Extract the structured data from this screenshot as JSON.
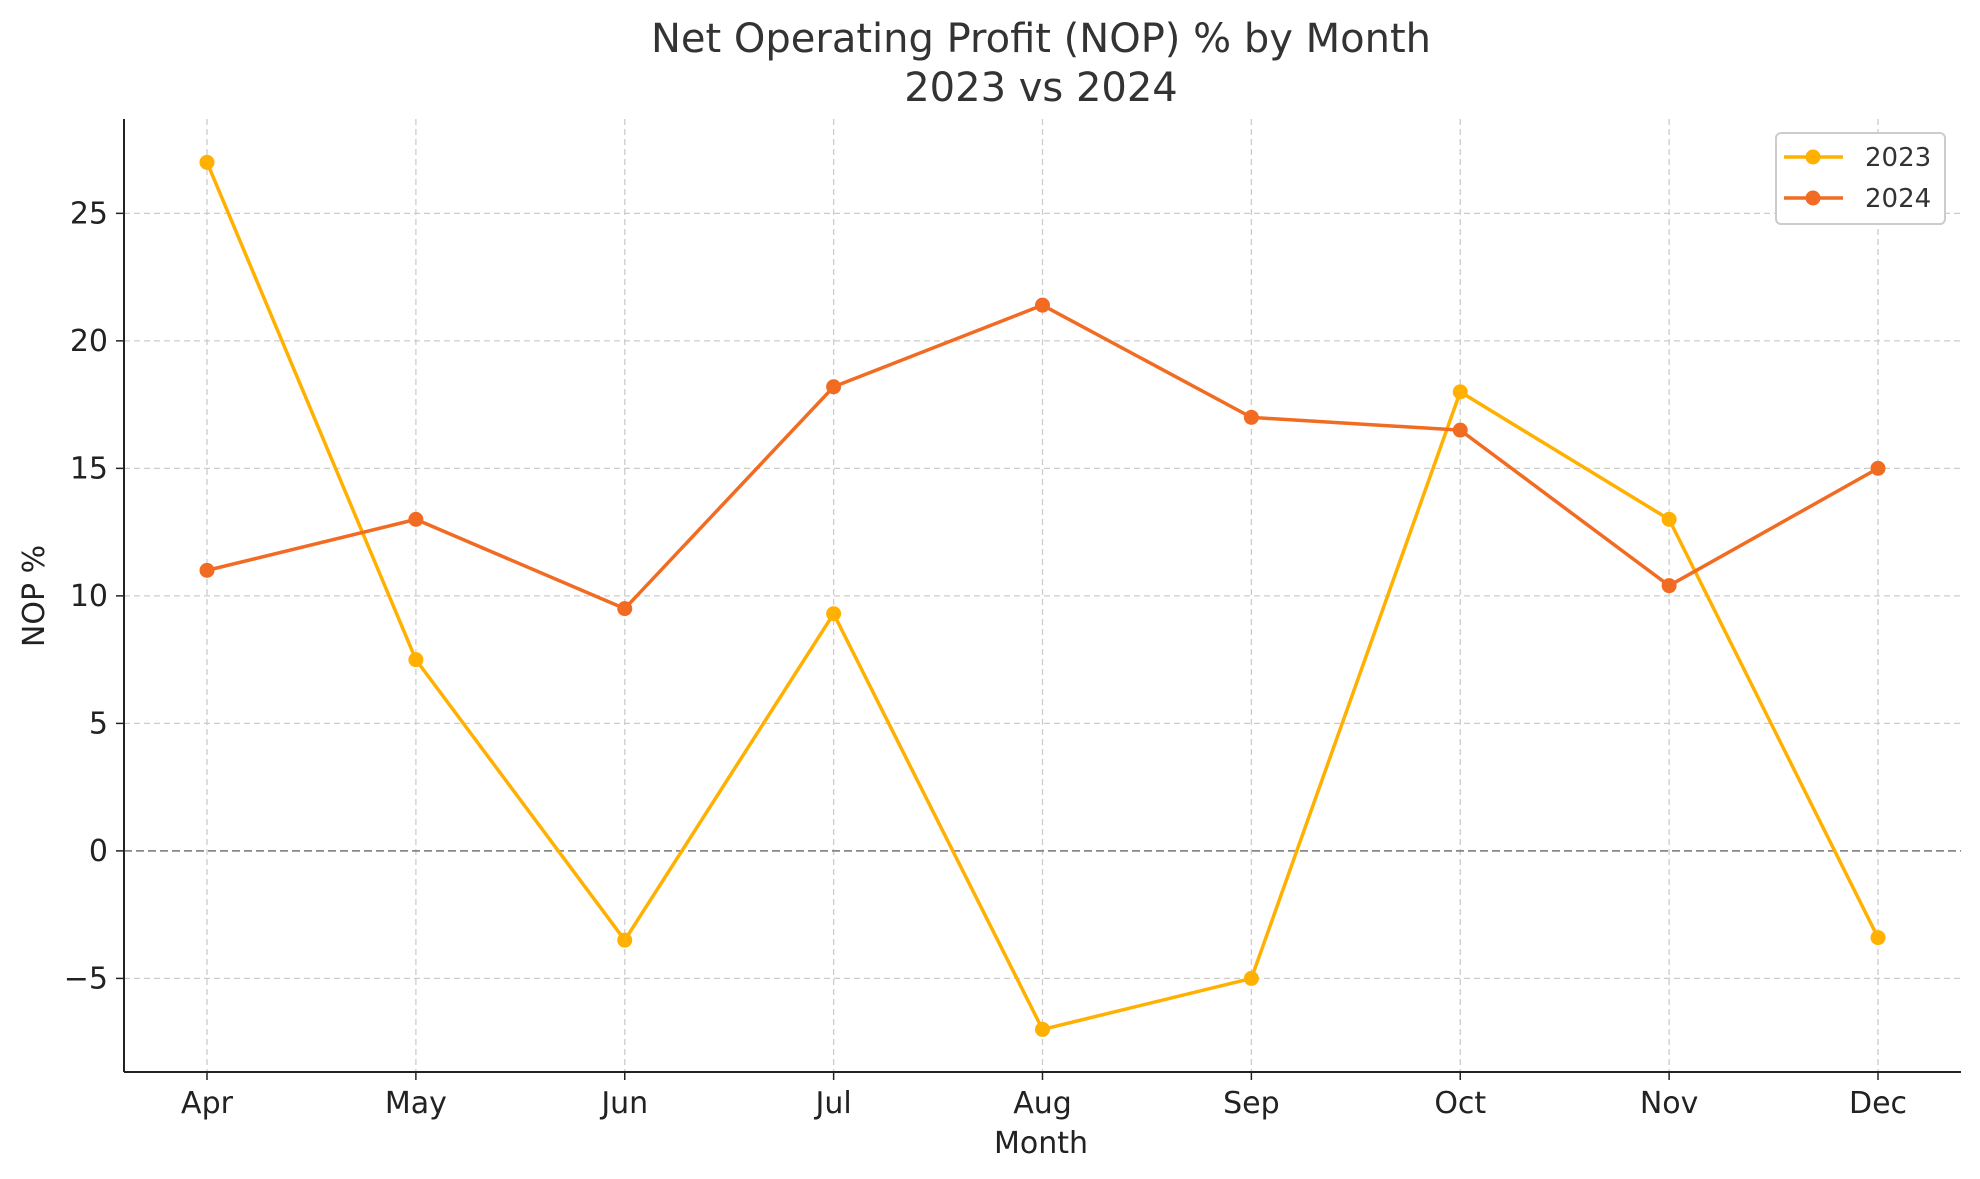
{
  "chart_data": {
    "type": "line",
    "title": "Net Operating Profit (NOP) % by Month",
    "subtitle": "2023 vs 2024",
    "xlabel": "Month",
    "ylabel": "NOP %",
    "categories": [
      "Apr",
      "May",
      "Jun",
      "Jul",
      "Aug",
      "Sep",
      "Oct",
      "Nov",
      "Dec"
    ],
    "ylim": [
      -8.67,
      28.7
    ],
    "yticks": [
      -5,
      0,
      5,
      10,
      15,
      20,
      25
    ],
    "ytick_labels": [
      "−5",
      "0",
      "5",
      "10",
      "15",
      "20",
      "25"
    ],
    "grid": true,
    "zero_line": true,
    "legend_position": "top-right",
    "series": [
      {
        "name": "2023",
        "color": "#FFB000",
        "values": [
          27,
          7.5,
          -3.5,
          9.3,
          -7,
          -5,
          18,
          13,
          -3.4
        ]
      },
      {
        "name": "2024",
        "color": "#F26B22",
        "values": [
          11,
          13,
          9.5,
          18.2,
          21.4,
          17,
          16.5,
          10.4,
          15
        ]
      }
    ]
  }
}
